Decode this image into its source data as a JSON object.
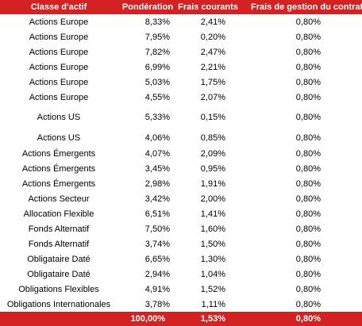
{
  "table": {
    "header": [
      "Classe d'actif",
      "Pondération",
      "Frais courants",
      "Frais de gestion du contrat"
    ],
    "rows": [
      [
        "Actions Europe",
        "8,33%",
        "2,41%",
        "0,80%"
      ],
      [
        "Actions Europe",
        "7,95%",
        "0,20%",
        "0,80%"
      ],
      [
        "Actions Europe",
        "7,82%",
        "2,47%",
        "0,80%"
      ],
      [
        "Actions Europe",
        "6,99%",
        "2,21%",
        "0,80%"
      ],
      [
        "Actions Europe",
        "5,03%",
        "1,75%",
        "0,80%"
      ],
      [
        "Actions Europe",
        "4,55%",
        "2,07%",
        "0,80%"
      ],
      [
        "Actions US",
        "5,33%",
        "0,15%",
        "0,80%"
      ],
      [
        "Actions US",
        "4,06%",
        "0,85%",
        "0,80%"
      ],
      [
        "Actions Émergents",
        "4,07%",
        "2,09%",
        "0,80%"
      ],
      [
        "Actions Émergents",
        "3,45%",
        "0,95%",
        "0,80%"
      ],
      [
        "Actions Émergents",
        "2,98%",
        "1,91%",
        "0,80%"
      ],
      [
        "Actions Secteur",
        "3,42%",
        "2,00%",
        "0,80%"
      ],
      [
        "Allocation Flexible",
        "6,51%",
        "1,41%",
        "0,80%"
      ],
      [
        "Fonds Alternatif",
        "7,50%",
        "1,60%",
        "0,80%"
      ],
      [
        "Fonds Alternatif",
        "3,74%",
        "1,50%",
        "0,80%"
      ],
      [
        "Obligataire Daté",
        "6,65%",
        "1,30%",
        "0,80%"
      ],
      [
        "Obligataire Daté",
        "2,94%",
        "1,04%",
        "0,80%"
      ],
      [
        "Obligations Flexibles",
        "4,91%",
        "1,52%",
        "0,80%"
      ],
      [
        "Obligations Internationales",
        "3,78%",
        "1,11%",
        "0,80%"
      ]
    ],
    "footer": [
      "100,00%",
      "1,53%",
      "0,80%"
    ]
  }
}
